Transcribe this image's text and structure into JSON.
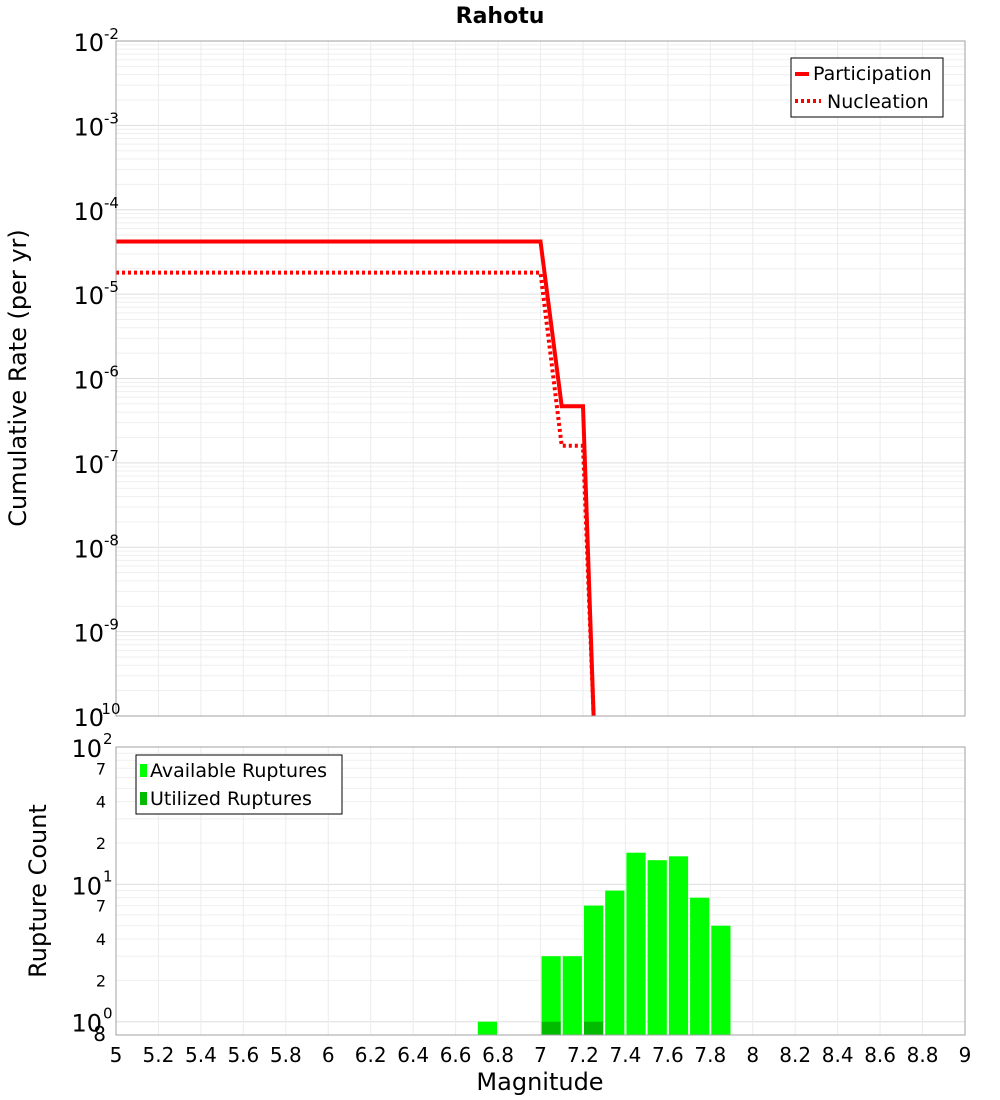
{
  "chart_data": [
    {
      "type": "line",
      "title": "Rahotu",
      "ylabel": "Cumulative Rate (per yr)",
      "xlabel": "",
      "yscale": "log",
      "xlim": [
        5,
        9
      ],
      "ylim": [
        1e-10,
        0.01
      ],
      "ytick_exponents": [
        "-2",
        "-3",
        "-4",
        "-5",
        "-6",
        "-7",
        "-8",
        "-9",
        "-10"
      ],
      "legend": {
        "position": "top-right",
        "entries": [
          "Participation",
          "Nucleation"
        ]
      },
      "series": [
        {
          "name": "Participation",
          "style": "solid",
          "color": "#ff0000",
          "points": [
            [
              5.0,
              4.2e-05
            ],
            [
              7.0,
              4.2e-05
            ],
            [
              7.1,
              4.7e-07
            ],
            [
              7.2,
              4.7e-07
            ],
            [
              7.25,
              1e-10
            ]
          ]
        },
        {
          "name": "Nucleation",
          "style": "dotted",
          "color": "#ff0000",
          "points": [
            [
              5.0,
              1.8e-05
            ],
            [
              7.0,
              1.8e-05
            ],
            [
              7.1,
              1.6e-07
            ],
            [
              7.2,
              1.6e-07
            ],
            [
              7.25,
              1e-10
            ]
          ]
        }
      ]
    },
    {
      "type": "bar",
      "title": "",
      "ylabel": "Rupture Count",
      "xlabel": "Magnitude",
      "yscale": "log",
      "xlim": [
        5,
        9
      ],
      "ylim": [
        0.8,
        100
      ],
      "x_ticks": [
        "5",
        "5.2",
        "5.4",
        "5.6",
        "5.8",
        "6",
        "6.2",
        "6.4",
        "6.6",
        "6.8",
        "7",
        "7.2",
        "7.4",
        "7.6",
        "7.8",
        "8",
        "8.2",
        "8.4",
        "8.6",
        "8.8",
        "9"
      ],
      "legend": {
        "position": "top-left",
        "entries": [
          "Available Ruptures",
          "Utilized Ruptures"
        ]
      },
      "bin_width": 0.1,
      "series": [
        {
          "name": "Available Ruptures",
          "color": "#00ff00",
          "x": [
            6.75,
            7.05,
            7.15,
            7.25,
            7.35,
            7.45,
            7.55,
            7.65,
            7.75,
            7.85
          ],
          "values": [
            1,
            3,
            3,
            7,
            9,
            17,
            15,
            16,
            8,
            5
          ]
        },
        {
          "name": "Utilized Ruptures",
          "color": "#00bb00",
          "x": [
            7.05,
            7.25
          ],
          "values": [
            1,
            1
          ]
        }
      ]
    }
  ],
  "rate_axis": {
    "base": "10"
  },
  "count_axis": {
    "major_base": "10",
    "major_exponents": [
      "2",
      "1",
      "0"
    ],
    "minor_labels": [
      "7",
      "4",
      "2",
      "7",
      "4",
      "2",
      "8"
    ]
  }
}
